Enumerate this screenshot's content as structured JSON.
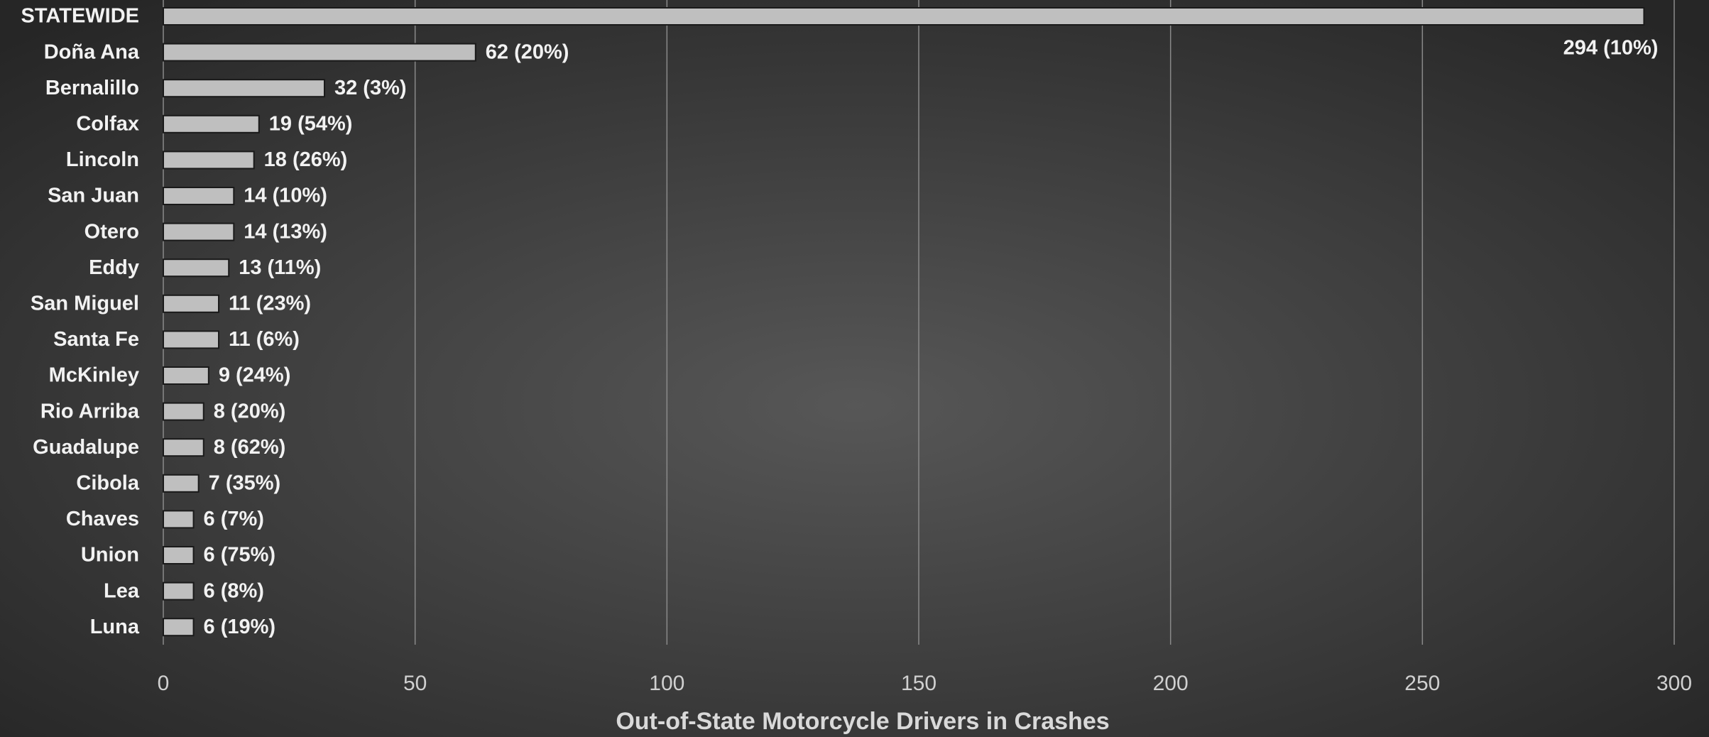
{
  "chart_data": {
    "type": "bar",
    "orientation": "horizontal",
    "x_label": "Out-of-State Motorcycle Drivers in Crashes",
    "categories": [
      "STATEWIDE",
      "Doña Ana",
      "Bernalillo",
      "Colfax",
      "Lincoln",
      "San Juan",
      "Otero",
      "Eddy",
      "San Miguel",
      "Santa Fe",
      "McKinley",
      "Rio Arriba",
      "Guadalupe",
      "Cibola",
      "Chaves",
      "Union",
      "Lea",
      "Luna"
    ],
    "values": [
      294,
      62,
      32,
      19,
      18,
      14,
      14,
      13,
      11,
      11,
      9,
      8,
      8,
      7,
      6,
      6,
      6,
      6
    ],
    "value_labels": [
      "294 (10%)",
      "62 (20%)",
      "32 (3%)",
      "19 (54%)",
      "18 (26%)",
      "14 (10%)",
      "14 (13%)",
      "13 (11%)",
      "11 (23%)",
      "11 (6%)",
      "9 (24%)",
      "8 (20%)",
      "8 (62%)",
      "7 (35%)",
      "6 (7%)",
      "6 (75%)",
      "6 (8%)",
      "6 (19%)"
    ],
    "color": "#bfbfbf",
    "xlim": [
      0,
      300
    ],
    "xticks": [
      0,
      50,
      100,
      150,
      200,
      250,
      300
    ],
    "grid": true
  }
}
